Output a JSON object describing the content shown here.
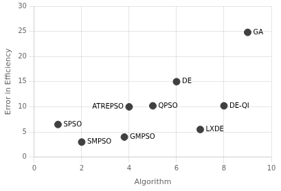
{
  "chart_data": {
    "type": "scatter",
    "xlabel": "Algorithm",
    "ylabel": "Error in Efficiency",
    "x": [
      1,
      2,
      3.8,
      4,
      5,
      6,
      7,
      8,
      9
    ],
    "values": [
      6.5,
      3.0,
      4.0,
      10.0,
      10.2,
      15.0,
      5.5,
      10.2,
      24.8
    ],
    "annotations": [
      "SPSO",
      "SMPSO",
      "GMPSO",
      "ATREPSO",
      "QPSO",
      "DE",
      "LXDE",
      "DE-QI",
      "GA"
    ],
    "color": "#404040",
    "xlim": [
      0,
      10
    ],
    "ylim": [
      0,
      30
    ],
    "xticks": [
      0,
      2,
      4,
      6,
      8,
      10
    ],
    "yticks": [
      0,
      5,
      10,
      15,
      20,
      25,
      30
    ],
    "grid": true
  }
}
